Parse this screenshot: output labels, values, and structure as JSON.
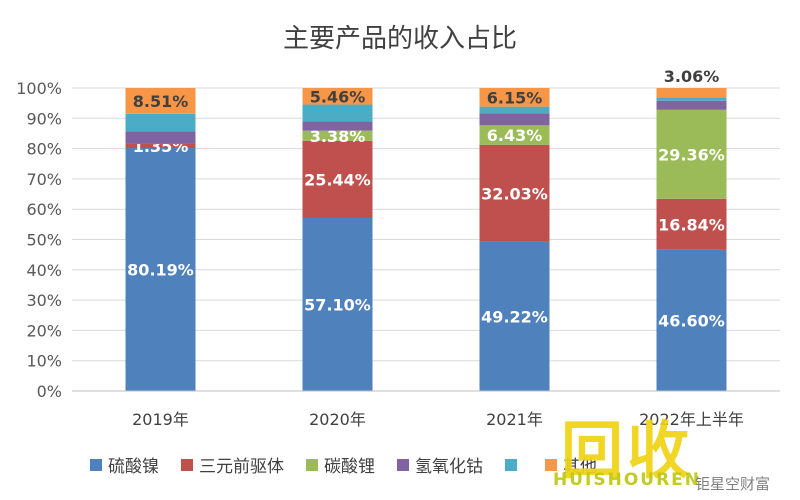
{
  "chart_data": {
    "type": "stacked-bar-100",
    "title": "主要产品的收入占比",
    "categories": [
      "2019年",
      "2020年",
      "2021年",
      "2022年上半年"
    ],
    "ylim": [
      0,
      100
    ],
    "yticks": [
      "0%",
      "10%",
      "20%",
      "30%",
      "40%",
      "50%",
      "60%",
      "70%",
      "80%",
      "90%",
      "100%"
    ],
    "grid": true,
    "legend_position": "bottom",
    "series": [
      {
        "name": "硫酸镍",
        "color": "#4F81BD",
        "values": [
          80.19,
          57.1,
          49.22,
          46.6
        ],
        "labels": [
          "80.19%",
          "57.10%",
          "49.22%",
          "46.60%"
        ]
      },
      {
        "name": "三元前驱体",
        "color": "#C0504D",
        "values": [
          1.35,
          25.44,
          32.03,
          16.84
        ],
        "labels": [
          "1.35%",
          "25.44%",
          "32.03%",
          "16.84%"
        ]
      },
      {
        "name": "碳酸锂",
        "color": "#9BBB59",
        "values": [
          0,
          3.38,
          6.43,
          29.36
        ],
        "labels": [
          "",
          "3.38%",
          "6.43%",
          "29.36%"
        ]
      },
      {
        "name": "氢氧化钴",
        "color": "#8064A2",
        "values": [
          4.2,
          3.0,
          4.0,
          3.0
        ],
        "labels": [
          "",
          "",
          "",
          ""
        ]
      },
      {
        "name": "",
        "color": "#4BACC6",
        "values": [
          5.75,
          5.62,
          2.17,
          1.14
        ],
        "labels": [
          "",
          "",
          "",
          ""
        ]
      },
      {
        "name": "其他",
        "color": "#F79646",
        "values": [
          8.51,
          5.46,
          6.15,
          3.06
        ],
        "labels": [
          "8.51%",
          "5.46%",
          "6.15%",
          "3.06%"
        ]
      }
    ]
  },
  "watermark": {
    "logo_text": "回收",
    "sub_text": "HUISHOUREN",
    "source_text": "钜星空财富"
  }
}
